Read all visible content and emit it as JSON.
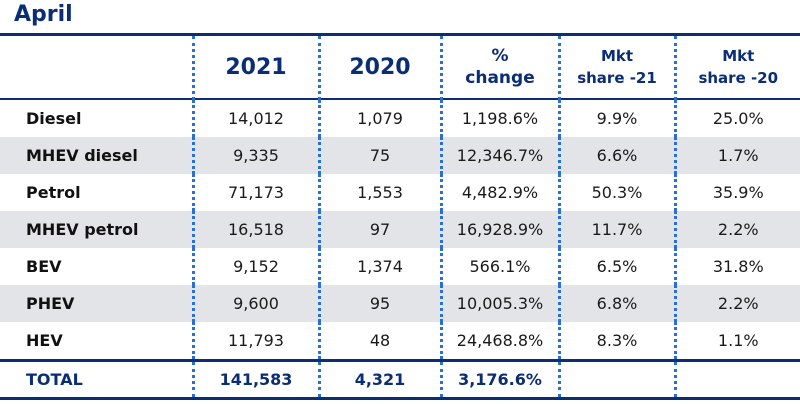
{
  "title": "April",
  "columns": {
    "c2021": "2021",
    "c2020": "2020",
    "pct_line1": "%",
    "pct_line2": "change",
    "mkt21_line1": "Mkt",
    "mkt21_line2": "share -21",
    "mkt20_line1": "Mkt",
    "mkt20_line2": "share -20"
  },
  "rows": [
    {
      "label": "Diesel",
      "v2021": "14,012",
      "v2020": "1,079",
      "change": "1,198.6%",
      "mkt21": "9.9%",
      "mkt20": "25.0%"
    },
    {
      "label": "MHEV diesel",
      "v2021": "9,335",
      "v2020": "75",
      "change": "12,346.7%",
      "mkt21": "6.6%",
      "mkt20": "1.7%"
    },
    {
      "label": "Petrol",
      "v2021": "71,173",
      "v2020": "1,553",
      "change": "4,482.9%",
      "mkt21": "50.3%",
      "mkt20": "35.9%"
    },
    {
      "label": "MHEV petrol",
      "v2021": "16,518",
      "v2020": "97",
      "change": "16,928.9%",
      "mkt21": "11.7%",
      "mkt20": "2.2%"
    },
    {
      "label": "BEV",
      "v2021": "9,152",
      "v2020": "1,374",
      "change": "566.1%",
      "mkt21": "6.5%",
      "mkt20": "31.8%"
    },
    {
      "label": "PHEV",
      "v2021": "9,600",
      "v2020": "95",
      "change": "10,005.3%",
      "mkt21": "6.8%",
      "mkt20": "2.2%"
    },
    {
      "label": "HEV",
      "v2021": "11,793",
      "v2020": "48",
      "change": "24,468.8%",
      "mkt21": "8.3%",
      "mkt20": "1.1%"
    }
  ],
  "total": {
    "label": "TOTAL",
    "v2021": "141,583",
    "v2020": "4,321",
    "change": "3,176.6%",
    "mkt21": "",
    "mkt20": ""
  },
  "colors": {
    "brand": "#0b2d73",
    "dots": "#2a6fd6",
    "shade": "#e3e4e7",
    "muted": "#a3a8b0"
  }
}
